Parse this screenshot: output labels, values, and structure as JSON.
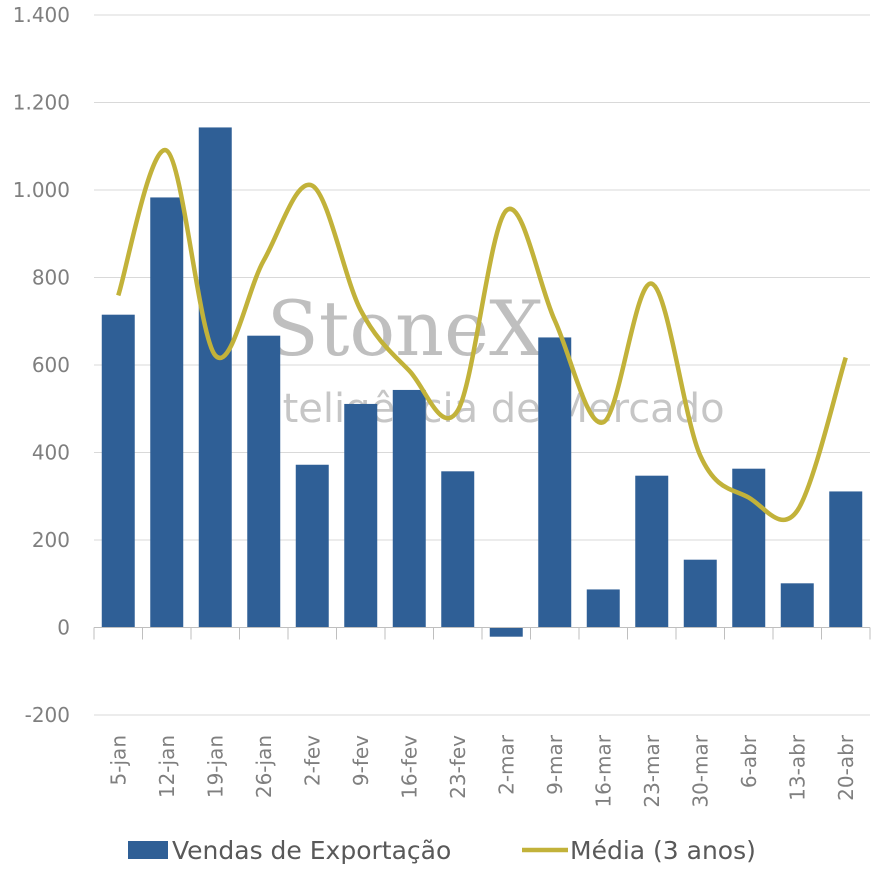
{
  "chart_data": {
    "type": "bar_line",
    "categories": [
      "5-jan",
      "12-jan",
      "19-jan",
      "26-jan",
      "2-fev",
      "9-fev",
      "16-fev",
      "23-fev",
      "2-mar",
      "9-mar",
      "16-mar",
      "23-mar",
      "30-mar",
      "6-abr",
      "13-abr",
      "20-abr"
    ],
    "series": [
      {
        "name": "Vendas de Exportação",
        "type": "bar",
        "color": "#2f5f96",
        "values": [
          715,
          983,
          1143,
          667,
          372,
          511,
          543,
          357,
          -21,
          663,
          87,
          347,
          155,
          363,
          101,
          311
        ]
      },
      {
        "name": "Média (3 anos)",
        "type": "line",
        "color": "#c2b23a",
        "values": [
          759,
          1090,
          622,
          839,
          1010,
          725,
          587,
          496,
          953,
          702,
          469,
          786,
          393,
          297,
          267,
          617
        ]
      }
    ],
    "ylim": [
      -200,
      1400
    ],
    "yticks": [
      -200,
      0,
      200,
      400,
      600,
      800,
      {
        "value": 1000,
        "label": "1.000"
      },
      {
        "value": 1200,
        "label": "1.200"
      },
      {
        "value": 1400,
        "label": "1.400"
      }
    ],
    "grid": true,
    "legend": "bottom",
    "watermark": {
      "brand": "StoneX",
      "tagline": "Inteligência de Mercado"
    }
  }
}
